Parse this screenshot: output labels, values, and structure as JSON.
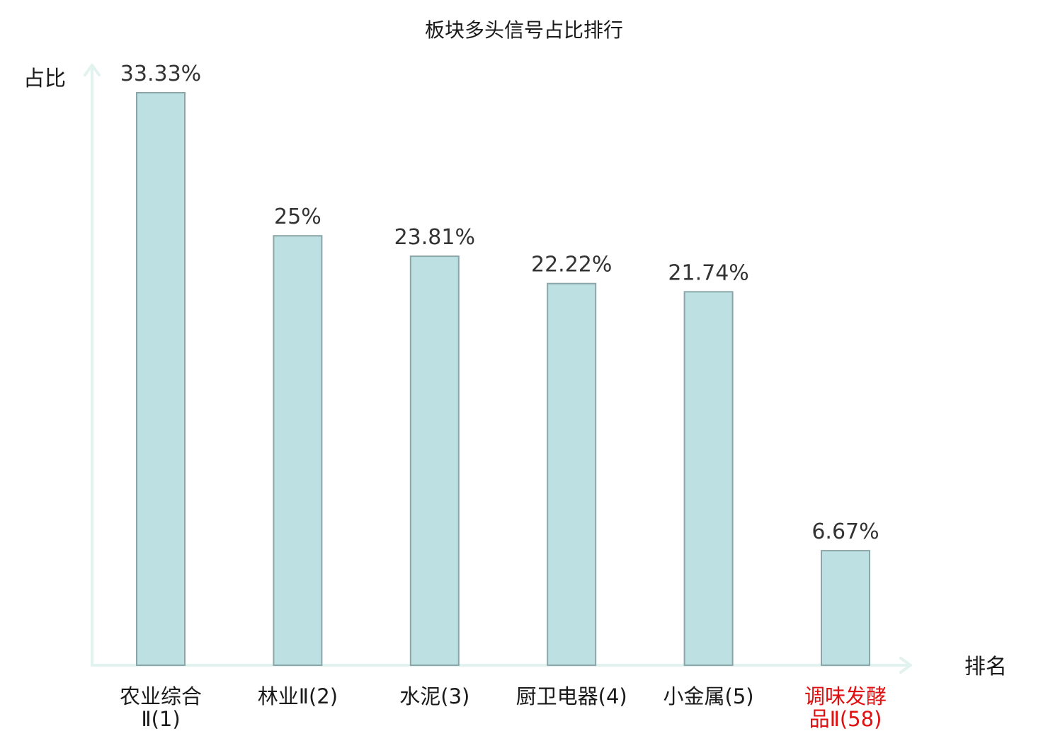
{
  "chart_data": {
    "type": "bar",
    "title": "板块多头信号占比排行",
    "xlabel": "排名",
    "ylabel": "占比",
    "categories": [
      [
        "农业综合",
        "Ⅱ(1)"
      ],
      [
        "林业Ⅱ(2)"
      ],
      [
        "水泥(3)"
      ],
      [
        "厨卫电器(4)"
      ],
      [
        "小金属(5)"
      ],
      [
        "调味发酵",
        "品Ⅱ(58)"
      ]
    ],
    "values": [
      33.33,
      25,
      23.81,
      22.22,
      21.74,
      6.67
    ],
    "value_labels": [
      "33.33%",
      "25%",
      "23.81%",
      "22.22%",
      "21.74%",
      "6.67%"
    ],
    "highlight_index": 5,
    "ylim": [
      0,
      33.33
    ],
    "grid": false,
    "colors": {
      "bar_fill": "#bde0e3",
      "bar_stroke": "#8aa6a8",
      "axis": "#e2f2ef",
      "category_text": "#1a1a1a",
      "highlight_text": "#e01010"
    }
  }
}
